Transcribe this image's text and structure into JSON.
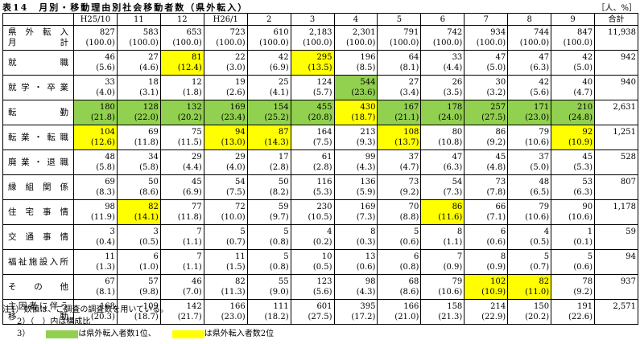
{
  "title": "表14　月別・移動理由別社会移動者数（県外転入）",
  "unit": "［人、%］",
  "header": [
    "H25/10",
    "11",
    "12",
    "H26/1",
    "2",
    "3",
    "4",
    "5",
    "6",
    "7",
    "8",
    "9",
    "合計"
  ],
  "colors": {
    "1": "#92d050",
    "2": "#ffff00"
  },
  "rows": [
    {
      "label": [
        "県外転入",
        "月計"
      ],
      "counts": [
        "827",
        "583",
        "653",
        "723",
        "610",
        "2,183",
        "2,301",
        "791",
        "742",
        "934",
        "744",
        "847"
      ],
      "pcts": [
        "(100.0)",
        "(100.0)",
        "(100.0)",
        "(100.0)",
        "(100.0)",
        "(100.0)",
        "(100.0)",
        "(100.0)",
        "(100.0)",
        "(100.0)",
        "(100.0)",
        "(100.0)"
      ],
      "total": "11,938",
      "rank": [
        null,
        null,
        null,
        null,
        null,
        null,
        null,
        null,
        null,
        null,
        null,
        null
      ]
    },
    {
      "label": [
        "就職"
      ],
      "counts": [
        "46",
        "27",
        "81",
        "22",
        "42",
        "295",
        "196",
        "64",
        "33",
        "47",
        "47",
        "42"
      ],
      "pcts": [
        "(5.6)",
        "(4.6)",
        "(12.4)",
        "(3.0)",
        "(6.9)",
        "(13.5)",
        "(8.5)",
        "(8.1)",
        "(4.4)",
        "(5.0)",
        "(6.3)",
        "(5.0)"
      ],
      "total": "942",
      "rank": [
        null,
        null,
        2,
        null,
        null,
        2,
        null,
        null,
        null,
        null,
        null,
        null
      ]
    },
    {
      "label": [
        "就学・卒業"
      ],
      "counts": [
        "33",
        "18",
        "12",
        "19",
        "25",
        "124",
        "544",
        "27",
        "26",
        "30",
        "42",
        "40"
      ],
      "pcts": [
        "(4.0)",
        "(3.1)",
        "(1.8)",
        "(2.6)",
        "(4.1)",
        "(5.7)",
        "(23.6)",
        "(3.4)",
        "(3.5)",
        "(3.2)",
        "(5.6)",
        "(4.7)"
      ],
      "total": "940",
      "rank": [
        null,
        null,
        null,
        null,
        null,
        null,
        1,
        null,
        null,
        null,
        null,
        null
      ]
    },
    {
      "label": [
        "転勤"
      ],
      "counts": [
        "180",
        "128",
        "132",
        "169",
        "154",
        "455",
        "430",
        "167",
        "178",
        "257",
        "171",
        "210"
      ],
      "pcts": [
        "(21.8)",
        "(22.0)",
        "(20.2)",
        "(23.4)",
        "(25.2)",
        "(20.8)",
        "(18.7)",
        "(21.1)",
        "(24.0)",
        "(27.5)",
        "(23.0)",
        "(24.8)"
      ],
      "total": "2,631",
      "rank": [
        1,
        1,
        1,
        1,
        1,
        1,
        2,
        1,
        1,
        1,
        1,
        1
      ]
    },
    {
      "label": [
        "転業・転職"
      ],
      "counts": [
        "104",
        "69",
        "75",
        "94",
        "87",
        "164",
        "213",
        "108",
        "80",
        "86",
        "79",
        "92"
      ],
      "pcts": [
        "(12.6)",
        "(11.8)",
        "(11.5)",
        "(13.0)",
        "(14.3)",
        "(7.5)",
        "(9.3)",
        "(13.7)",
        "(10.8)",
        "(9.2)",
        "(10.6)",
        "(10.9)"
      ],
      "total": "1,251",
      "rank": [
        2,
        null,
        null,
        2,
        2,
        null,
        null,
        2,
        null,
        null,
        null,
        2
      ]
    },
    {
      "label": [
        "廃業・退職"
      ],
      "counts": [
        "48",
        "34",
        "29",
        "29",
        "17",
        "61",
        "99",
        "37",
        "47",
        "45",
        "37",
        "45"
      ],
      "pcts": [
        "(5.8)",
        "(5.8)",
        "(4.4)",
        "(4.0)",
        "(2.8)",
        "(2.8)",
        "(4.3)",
        "(4.7)",
        "(6.3)",
        "(4.8)",
        "(5.0)",
        "(5.3)"
      ],
      "total": "528",
      "rank": [
        null,
        null,
        null,
        null,
        null,
        null,
        null,
        null,
        null,
        null,
        null,
        null
      ]
    },
    {
      "label": [
        "縁組関係"
      ],
      "counts": [
        "69",
        "50",
        "45",
        "54",
        "50",
        "116",
        "136",
        "73",
        "54",
        "73",
        "48",
        "53"
      ],
      "pcts": [
        "(8.3)",
        "(8.6)",
        "(6.9)",
        "(7.5)",
        "(8.2)",
        "(5.3)",
        "(5.9)",
        "(9.2)",
        "(7.3)",
        "(7.8)",
        "(6.5)",
        "(6.3)"
      ],
      "total": "807",
      "rank": [
        null,
        null,
        null,
        null,
        null,
        null,
        null,
        null,
        null,
        null,
        null,
        null
      ]
    },
    {
      "label": [
        "住宅事情"
      ],
      "counts": [
        "98",
        "82",
        "77",
        "72",
        "59",
        "230",
        "169",
        "70",
        "86",
        "66",
        "79",
        "90"
      ],
      "pcts": [
        "(11.9)",
        "(14.1)",
        "(11.8)",
        "(10.0)",
        "(9.7)",
        "(10.5)",
        "(7.3)",
        "(8.8)",
        "(11.6)",
        "(7.1)",
        "(10.6)",
        "(10.6)"
      ],
      "total": "1,178",
      "rank": [
        null,
        2,
        null,
        null,
        null,
        null,
        null,
        null,
        2,
        null,
        null,
        null
      ]
    },
    {
      "label": [
        "交通事情"
      ],
      "counts": [
        "3",
        "3",
        "7",
        "5",
        "5",
        "4",
        "8",
        "5",
        "8",
        "6",
        "4",
        "1"
      ],
      "pcts": [
        "(0.4)",
        "(0.5)",
        "(1.1)",
        "(0.7)",
        "(0.8)",
        "(0.2)",
        "(0.3)",
        "(0.6)",
        "(1.1)",
        "(0.6)",
        "(0.5)",
        "(0.1)"
      ],
      "total": "59",
      "rank": [
        null,
        null,
        null,
        null,
        null,
        null,
        null,
        null,
        null,
        null,
        null,
        null
      ]
    },
    {
      "label": [
        "福祉施設入所"
      ],
      "counts": [
        "11",
        "6",
        "7",
        "11",
        "5",
        "10",
        "13",
        "6",
        "7",
        "8",
        "5",
        "5"
      ],
      "pcts": [
        "(1.3)",
        "(1.0)",
        "(1.1)",
        "(1.5)",
        "(0.8)",
        "(0.5)",
        "(0.6)",
        "(0.8)",
        "(0.9)",
        "(0.9)",
        "(0.7)",
        "(0.6)"
      ],
      "total": "94",
      "rank": [
        null,
        null,
        null,
        null,
        null,
        null,
        null,
        null,
        null,
        null,
        null,
        null
      ]
    },
    {
      "label": [
        "その他"
      ],
      "counts": [
        "67",
        "57",
        "46",
        "82",
        "55",
        "123",
        "98",
        "68",
        "79",
        "102",
        "82",
        "78"
      ],
      "pcts": [
        "(8.1)",
        "(9.8)",
        "(7.0)",
        "(11.3)",
        "(9.0)",
        "(5.6)",
        "(4.3)",
        "(8.6)",
        "(10.6)",
        "(10.9)",
        "(11.0)",
        "(9.2)"
      ],
      "total": "937",
      "rank": [
        null,
        null,
        null,
        null,
        null,
        null,
        null,
        null,
        null,
        2,
        2,
        null
      ]
    },
    {
      "label": [
        "主因者に伴う",
        "移動"
      ],
      "counts": [
        "168",
        "109",
        "142",
        "166",
        "111",
        "601",
        "395",
        "166",
        "158",
        "214",
        "150",
        "191"
      ],
      "pcts": [
        "(20.3)",
        "(18.7)",
        "(21.7)",
        "(23.0)",
        "(18.2)",
        "(27.5)",
        "(17.2)",
        "(21.0)",
        "(21.3)",
        "(22.9)",
        "(20.2)",
        "(22.6)"
      ],
      "total": "2,571",
      "rank": [
        null,
        null,
        null,
        null,
        null,
        null,
        null,
        null,
        null,
        null,
        null,
        null
      ]
    }
  ],
  "notes": [
    "注1）数値は、ご調査の調査数を用いている。",
    "2）（　）内は構成比"
  ],
  "legend": {
    "prefix": "3）",
    "items": [
      {
        "rank": "1",
        "text": "は県外転入者数1位、"
      },
      {
        "rank": "2",
        "text": "は県外転入者数2位"
      }
    ]
  }
}
